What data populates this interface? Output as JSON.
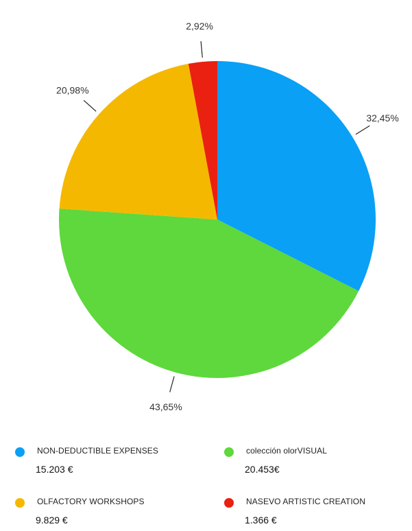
{
  "chart_data": {
    "type": "pie",
    "categories": [
      "NON-DEDUCTIBLE EXPENSES",
      "colección olorVISUAL",
      "OLFACTORY WORKSHOPS",
      "NASEVO ARTISTIC CREATION"
    ],
    "values": [
      32.45,
      43.65,
      20.98,
      2.92
    ],
    "value_labels": [
      "32,45%",
      "43,65%",
      "20,98%",
      "2,92%"
    ],
    "colors": [
      "#0aa0f6",
      "#5ed83c",
      "#f5b800",
      "#ea2010"
    ],
    "legend_placement": "bottom"
  },
  "legend": [
    {
      "name": "NON-DEDUCTIBLE EXPENSES",
      "amount": "15.203 €",
      "color": "#0aa0f6"
    },
    {
      "name": "colección olorVISUAL",
      "amount": "20.453€",
      "color": "#5ed83c"
    },
    {
      "name": "OLFACTORY WORKSHOPS",
      "amount": "9.829 €",
      "color": "#f5b800"
    },
    {
      "name": "NASEVO ARTISTIC CREATION",
      "amount": "1.366 €",
      "color": "#ea2010"
    }
  ]
}
